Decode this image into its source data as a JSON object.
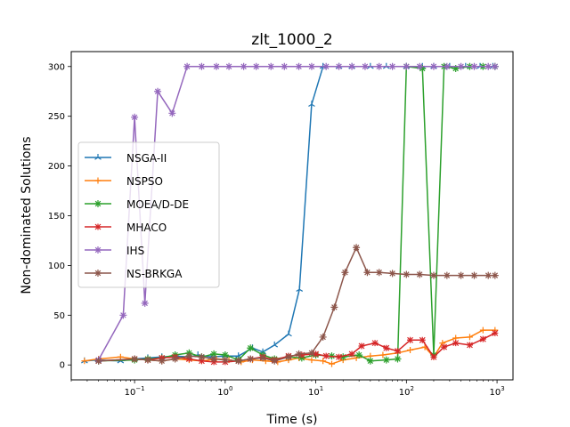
{
  "chart_data": {
    "type": "line",
    "title": "zlt_1000_2",
    "xlabel": "Time (s)",
    "ylabel": "Non-dominated Solutions",
    "xscale": "log",
    "xlim": [
      0.02,
      1500
    ],
    "ylim": [
      -15,
      315
    ],
    "yticks": [
      0,
      50,
      100,
      150,
      200,
      250,
      300
    ],
    "xticks": [
      {
        "value": 0.1,
        "base": "10",
        "exp": "−1"
      },
      {
        "value": 1,
        "base": "10",
        "exp": "0"
      },
      {
        "value": 10,
        "base": "10",
        "exp": "1"
      },
      {
        "value": 100,
        "base": "10",
        "exp": "2"
      },
      {
        "value": 1000,
        "base": "10",
        "exp": "3"
      }
    ],
    "legend_position": "center-left",
    "grid": false,
    "series": [
      {
        "name": "NSGA-II",
        "color": "#1f77b4",
        "marker": "tri",
        "x": [
          0.028,
          0.04,
          0.07,
          0.1,
          0.14,
          0.2,
          0.28,
          0.4,
          0.5,
          0.7,
          1.0,
          1.4,
          2.0,
          2.6,
          3.5,
          5.0,
          6.6,
          9.0,
          12,
          18,
          25,
          40,
          60,
          100,
          150,
          200,
          300,
          450,
          650,
          900
        ],
        "y": [
          4,
          5,
          4,
          6,
          7,
          8,
          9,
          8,
          10,
          8,
          9,
          9,
          17,
          13,
          20,
          31,
          76,
          262,
          300,
          300,
          300,
          300,
          300,
          300,
          300,
          300,
          300,
          300,
          300,
          300
        ]
      },
      {
        "name": "NSPSO",
        "color": "#ff7f0e",
        "marker": "plus",
        "x": [
          0.028,
          0.04,
          0.07,
          0.1,
          0.14,
          0.2,
          0.28,
          0.4,
          0.55,
          0.8,
          1.1,
          1.5,
          2.0,
          2.8,
          3.8,
          5.0,
          6.5,
          9.0,
          12,
          15,
          20,
          28,
          40,
          55,
          80,
          110,
          160,
          200,
          250,
          350,
          500,
          700,
          950
        ],
        "y": [
          4,
          6,
          8,
          6,
          5,
          4,
          6,
          5,
          4,
          6,
          5,
          3,
          5,
          4,
          3,
          5,
          7,
          5,
          4,
          1,
          5,
          7,
          9,
          10,
          12,
          15,
          18,
          8,
          22,
          27,
          28,
          35,
          35
        ]
      },
      {
        "name": "MOEA/D-DE",
        "color": "#2ca02c",
        "marker": "star",
        "x": [
          0.04,
          0.1,
          0.14,
          0.2,
          0.28,
          0.4,
          0.55,
          0.75,
          1.0,
          1.4,
          1.9,
          2.6,
          3.5,
          5.0,
          7.0,
          10,
          15,
          20,
          30,
          40,
          60,
          80,
          100,
          150,
          200,
          260,
          350,
          500,
          700,
          950
        ],
        "y": [
          4,
          5,
          6,
          7,
          10,
          12,
          8,
          11,
          10,
          5,
          17,
          10,
          6,
          8,
          7,
          10,
          9,
          8,
          10,
          4,
          5,
          6,
          300,
          298,
          10,
          300,
          298,
          300,
          300,
          300
        ]
      },
      {
        "name": "MHACO",
        "color": "#d62728",
        "marker": "x",
        "x": [
          0.04,
          0.1,
          0.14,
          0.2,
          0.28,
          0.4,
          0.55,
          0.75,
          1.0,
          1.4,
          1.9,
          2.6,
          3.5,
          5.0,
          7.0,
          10,
          13,
          18,
          25,
          32,
          45,
          60,
          80,
          110,
          150,
          200,
          260,
          350,
          500,
          700,
          950
        ],
        "y": [
          4,
          6,
          5,
          7,
          8,
          6,
          4,
          3,
          3,
          4,
          6,
          8,
          5,
          9,
          10,
          11,
          9,
          8,
          11,
          19,
          22,
          17,
          14,
          25,
          25,
          8,
          18,
          22,
          20,
          26,
          32
        ]
      },
      {
        "name": "IHS",
        "color": "#9467bd",
        "marker": "star",
        "x": [
          0.04,
          0.075,
          0.1,
          0.13,
          0.18,
          0.26,
          0.38,
          0.55,
          0.8,
          1.1,
          1.6,
          2.2,
          3.2,
          4.5,
          6.5,
          9.0,
          13,
          18,
          25,
          35,
          50,
          70,
          100,
          140,
          200,
          280,
          400,
          560,
          800,
          950
        ],
        "y": [
          5,
          50,
          249,
          62,
          275,
          253,
          300,
          300,
          300,
          300,
          300,
          300,
          300,
          300,
          300,
          300,
          300,
          300,
          300,
          300,
          300,
          300,
          300,
          300,
          300,
          300,
          300,
          300,
          300,
          300
        ]
      },
      {
        "name": "NS-BRKGA",
        "color": "#8c564b",
        "marker": "star",
        "x": [
          0.04,
          0.1,
          0.14,
          0.2,
          0.28,
          0.4,
          0.55,
          0.75,
          1.0,
          1.4,
          1.9,
          2.6,
          3.5,
          5.0,
          6.5,
          9.0,
          12,
          16,
          21,
          28,
          37,
          50,
          70,
          100,
          140,
          200,
          280,
          400,
          560,
          800,
          950
        ],
        "y": [
          4,
          6,
          5,
          4,
          6,
          9,
          8,
          6,
          5,
          4,
          6,
          7,
          4,
          8,
          11,
          12,
          28,
          58,
          93,
          118,
          93,
          93,
          92,
          91,
          91,
          90,
          90,
          90,
          90,
          90,
          90
        ]
      }
    ]
  }
}
